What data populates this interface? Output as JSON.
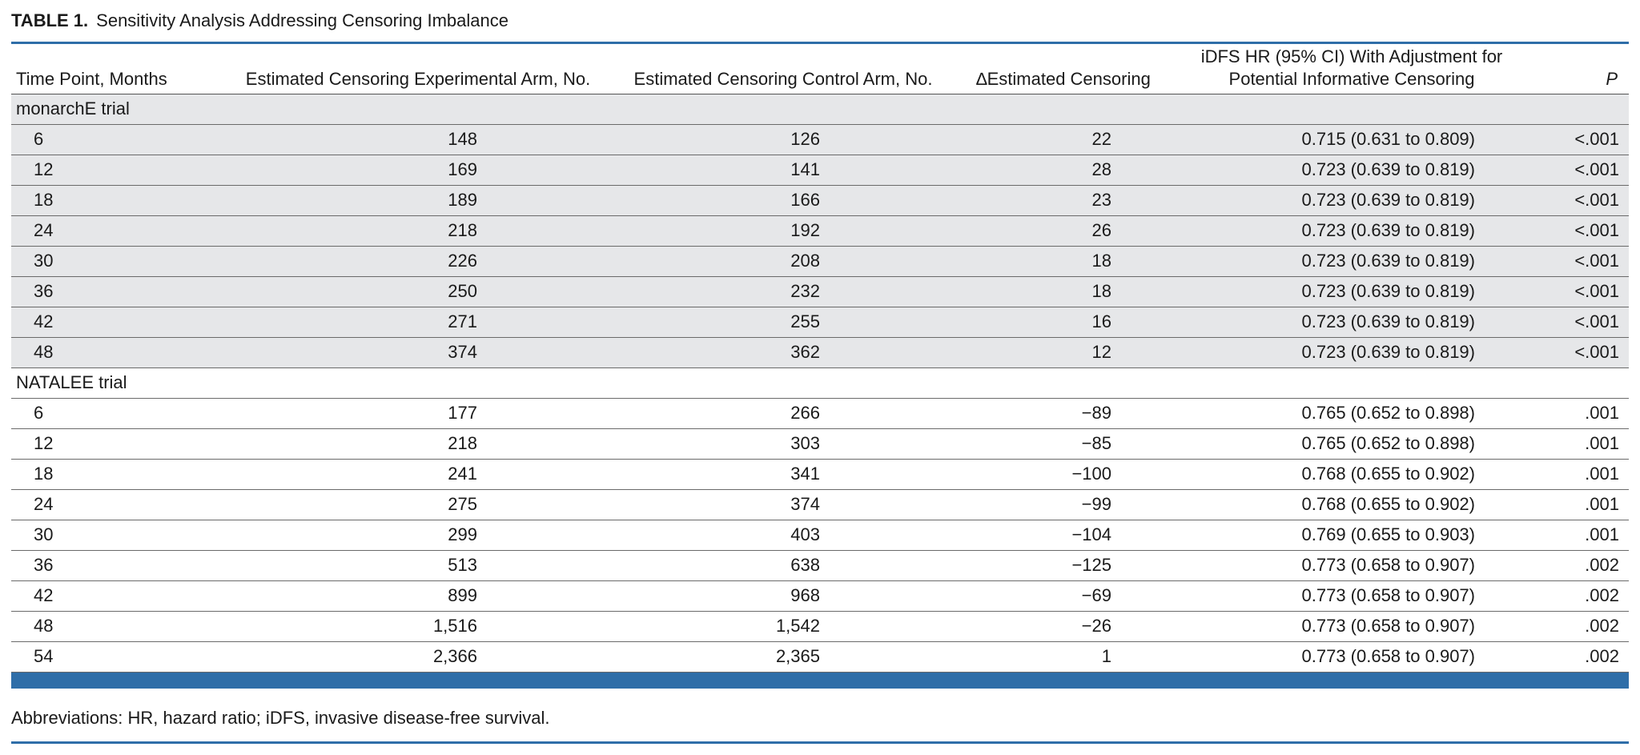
{
  "table": {
    "label": "TABLE 1.",
    "title": "Sensitivity Analysis Addressing Censoring Imbalance",
    "headers": {
      "time_point": "Time Point, Months",
      "experimental": "Estimated Censoring Experimental Arm, No.",
      "control": "Estimated Censoring Control Arm, No.",
      "delta": "∆Estimated Censoring",
      "hr_line1": "iDFS HR (95% CI) With Adjustment for",
      "hr_line2": "Potential Informative Censoring",
      "p": "P"
    },
    "groups": [
      {
        "name": "monarchE trial",
        "rows": [
          [
            "6",
            "148",
            "126",
            "22",
            "0.715 (0.631 to 0.809)",
            "<.001"
          ],
          [
            "12",
            "169",
            "141",
            "28",
            "0.723 (0.639 to 0.819)",
            "<.001"
          ],
          [
            "18",
            "189",
            "166",
            "23",
            "0.723 (0.639 to 0.819)",
            "<.001"
          ],
          [
            "24",
            "218",
            "192",
            "26",
            "0.723 (0.639 to 0.819)",
            "<.001"
          ],
          [
            "30",
            "226",
            "208",
            "18",
            "0.723 (0.639 to 0.819)",
            "<.001"
          ],
          [
            "36",
            "250",
            "232",
            "18",
            "0.723 (0.639 to 0.819)",
            "<.001"
          ],
          [
            "42",
            "271",
            "255",
            "16",
            "0.723 (0.639 to 0.819)",
            "<.001"
          ],
          [
            "48",
            "374",
            "362",
            "12",
            "0.723 (0.639 to 0.819)",
            "<.001"
          ]
        ]
      },
      {
        "name": "NATALEE trial",
        "rows": [
          [
            "6",
            "177",
            "266",
            "−89",
            "0.765 (0.652 to 0.898)",
            ".001"
          ],
          [
            "12",
            "218",
            "303",
            "−85",
            "0.765 (0.652 to 0.898)",
            ".001"
          ],
          [
            "18",
            "241",
            "341",
            "−100",
            "0.768 (0.655 to 0.902)",
            ".001"
          ],
          [
            "24",
            "275",
            "374",
            "−99",
            "0.768 (0.655 to 0.902)",
            ".001"
          ],
          [
            "30",
            "299",
            "403",
            "−104",
            "0.769 (0.655 to 0.903)",
            ".001"
          ],
          [
            "36",
            "513",
            "638",
            "−125",
            "0.773 (0.658 to 0.907)",
            ".002"
          ],
          [
            "42",
            "899",
            "968",
            "−69",
            "0.773 (0.658 to 0.907)",
            ".002"
          ],
          [
            "48",
            "1,516",
            "1,542",
            "−26",
            "0.773 (0.658 to 0.907)",
            ".002"
          ],
          [
            "54",
            "2,366",
            "2,365",
            "1",
            "0.773 (0.658 to 0.907)",
            ".002"
          ]
        ]
      }
    ],
    "footnote": "Abbreviations: HR, hazard ratio; iDFS, invasive disease-free survival.",
    "colors": {
      "accent": "#2f6ea8",
      "shade": "#e6e7e9"
    }
  }
}
